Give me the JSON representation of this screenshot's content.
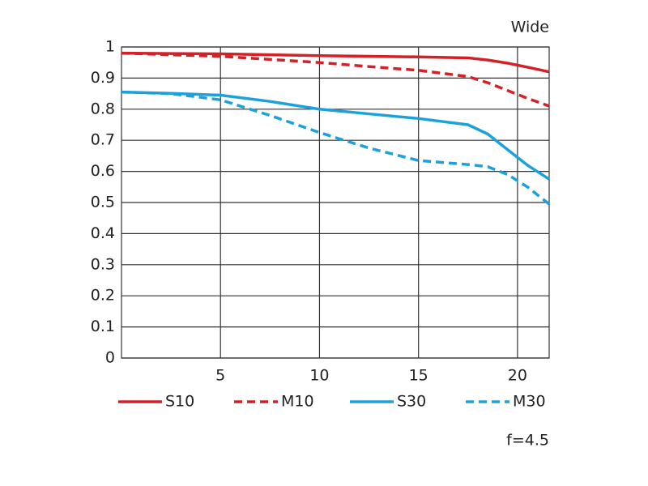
{
  "chart_data": {
    "type": "line",
    "annotations": [
      "Wide",
      "f=4.5"
    ],
    "x": [
      0,
      2.5,
      5,
      7.5,
      10,
      12.5,
      15,
      17.5,
      18.5,
      19.5,
      20.5,
      21.6
    ],
    "series": [
      {
        "name": "S10",
        "color": "#d42027",
        "style": "solid",
        "values": [
          0.98,
          0.979,
          0.978,
          0.975,
          0.972,
          0.97,
          0.968,
          0.965,
          0.958,
          0.948,
          0.935,
          0.92
        ]
      },
      {
        "name": "M10",
        "color": "#d42027",
        "style": "dashed",
        "values": [
          0.98,
          0.975,
          0.97,
          0.96,
          0.95,
          0.937,
          0.925,
          0.905,
          0.885,
          0.86,
          0.835,
          0.81
        ]
      },
      {
        "name": "S30",
        "color": "#1ba1dc",
        "style": "solid",
        "values": [
          0.855,
          0.851,
          0.845,
          0.825,
          0.8,
          0.785,
          0.77,
          0.75,
          0.72,
          0.67,
          0.62,
          0.575
        ]
      },
      {
        "name": "M30",
        "color": "#1ba1dc",
        "style": "dashed",
        "values": [
          0.855,
          0.85,
          0.83,
          0.78,
          0.725,
          0.675,
          0.635,
          0.622,
          0.615,
          0.59,
          0.55,
          0.495
        ]
      }
    ],
    "xlim": [
      0,
      21.6
    ],
    "xticks": [
      5,
      10,
      15,
      20
    ],
    "ylim": [
      0,
      1
    ],
    "yticks": [
      0,
      0.1,
      0.2,
      0.3,
      0.4,
      0.5,
      0.6,
      0.7,
      0.8,
      0.9,
      1
    ],
    "grid": true
  }
}
